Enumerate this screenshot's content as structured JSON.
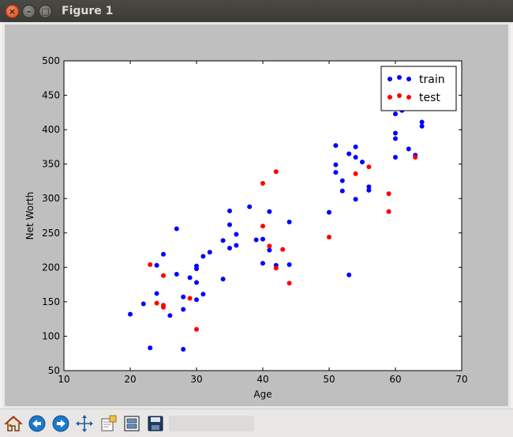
{
  "window": {
    "title": "Figure 1",
    "close_glyph": "×",
    "minimize_glyph": "–",
    "maximize_glyph": "□"
  },
  "toolbar": {
    "buttons": [
      "home-icon",
      "back-arrow-icon",
      "forward-arrow-icon",
      "pan-move-icon",
      "zoom-rect-icon",
      "configure-subplots-icon",
      "save-icon"
    ],
    "status_text": ""
  },
  "chart_data": {
    "type": "scatter",
    "title": "",
    "xlabel": "Age",
    "ylabel": "Net Worth",
    "xlim": [
      10,
      70
    ],
    "ylim": [
      50,
      500
    ],
    "xticks": [
      10,
      20,
      30,
      40,
      50,
      60,
      70
    ],
    "yticks": [
      50,
      100,
      150,
      200,
      250,
      300,
      350,
      400,
      450,
      500
    ],
    "grid": false,
    "legend": {
      "location": "top-right"
    },
    "series": [
      {
        "name": "train",
        "color": "#0000ff",
        "points": [
          [
            20,
            132
          ],
          [
            22,
            147
          ],
          [
            23,
            83
          ],
          [
            24,
            162
          ],
          [
            24,
            203
          ],
          [
            25,
            219
          ],
          [
            26,
            130
          ],
          [
            27,
            190
          ],
          [
            27,
            256
          ],
          [
            28,
            157
          ],
          [
            28,
            139
          ],
          [
            28,
            81
          ],
          [
            29,
            185
          ],
          [
            30,
            198
          ],
          [
            30,
            202
          ],
          [
            30,
            178
          ],
          [
            30,
            153
          ],
          [
            31,
            216
          ],
          [
            31,
            161
          ],
          [
            32,
            222
          ],
          [
            34,
            239
          ],
          [
            34,
            183
          ],
          [
            35,
            282
          ],
          [
            35,
            262
          ],
          [
            35,
            228
          ],
          [
            36,
            248
          ],
          [
            36,
            232
          ],
          [
            38,
            288
          ],
          [
            39,
            240
          ],
          [
            40,
            241
          ],
          [
            40,
            206
          ],
          [
            41,
            281
          ],
          [
            41,
            225
          ],
          [
            42,
            203
          ],
          [
            44,
            266
          ],
          [
            44,
            204
          ],
          [
            50,
            280
          ],
          [
            51,
            377
          ],
          [
            51,
            349
          ],
          [
            51,
            338
          ],
          [
            52,
            326
          ],
          [
            52,
            311
          ],
          [
            53,
            365
          ],
          [
            53,
            189
          ],
          [
            54,
            375
          ],
          [
            54,
            360
          ],
          [
            54,
            299
          ],
          [
            55,
            353
          ],
          [
            56,
            317
          ],
          [
            56,
            312
          ],
          [
            60,
            423
          ],
          [
            60,
            395
          ],
          [
            60,
            387
          ],
          [
            60,
            360
          ],
          [
            61,
            428
          ],
          [
            61,
            444
          ],
          [
            62,
            372
          ],
          [
            63,
            363
          ],
          [
            64,
            411
          ],
          [
            64,
            405
          ]
        ]
      },
      {
        "name": "test",
        "color": "#ff0000",
        "points": [
          [
            23,
            204
          ],
          [
            24,
            148
          ],
          [
            25,
            188
          ],
          [
            25,
            145
          ],
          [
            25,
            142
          ],
          [
            29,
            155
          ],
          [
            30,
            110
          ],
          [
            40,
            322
          ],
          [
            40,
            260
          ],
          [
            41,
            231
          ],
          [
            42,
            339
          ],
          [
            42,
            199
          ],
          [
            43,
            226
          ],
          [
            44,
            177
          ],
          [
            50,
            244
          ],
          [
            54,
            336
          ],
          [
            56,
            346
          ],
          [
            59,
            307
          ],
          [
            59,
            281
          ],
          [
            63,
            360
          ]
        ]
      }
    ]
  }
}
